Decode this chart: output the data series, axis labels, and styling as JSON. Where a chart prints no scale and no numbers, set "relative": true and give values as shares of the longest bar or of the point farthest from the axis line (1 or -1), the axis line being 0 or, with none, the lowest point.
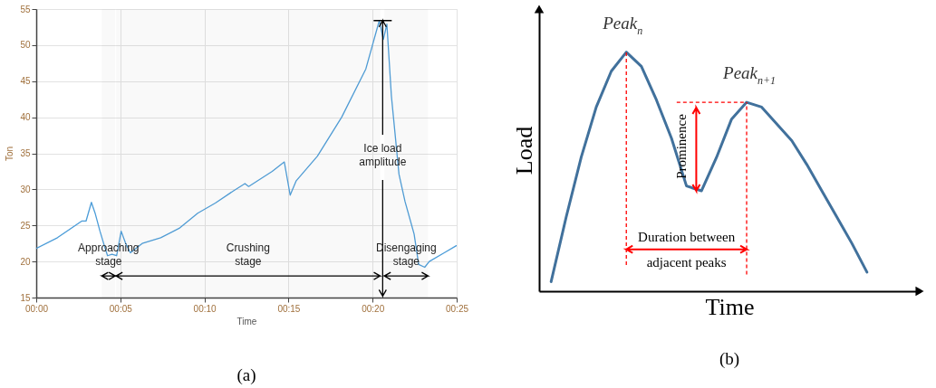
{
  "chart_data": [
    {
      "type": "line",
      "title": "(a)",
      "xlabel": "Time",
      "ylabel": "Ton",
      "x": [
        0,
        1.26,
        2.7,
        2.96,
        3.28,
        3.5,
        3.79,
        4.06,
        4.24,
        4.5,
        4.78,
        5.05,
        5.32,
        5.6,
        6.3,
        7.4,
        8.5,
        9.6,
        10.65,
        11.73,
        12.41,
        12.63,
        14.03,
        14.75,
        15.1,
        15.46,
        16.72,
        18.16,
        19.6,
        20.4,
        20.64,
        20.85,
        21.12,
        21.57,
        21.93,
        22.47,
        22.74,
        23.1,
        23.37,
        24.26,
        24.98
      ],
      "series": [
        {
          "color": "#4b9cd8",
          "values": [
            21.8,
            23.3,
            25.6,
            25.6,
            28.2,
            26.7,
            24.2,
            22.1,
            20.8,
            21.0,
            20.8,
            24.2,
            22.5,
            21.2,
            22.5,
            23.3,
            24.6,
            26.7,
            28.1,
            29.8,
            30.8,
            30.4,
            32.5,
            33.8,
            29.2,
            31.2,
            34.6,
            40.0,
            46.7,
            53.4,
            50.8,
            52.9,
            42.9,
            32.1,
            28.3,
            23.8,
            19.6,
            19.2,
            20.0,
            21.2,
            22.2
          ]
        }
      ],
      "xlim": [
        0,
        25
      ],
      "xticks": [
        {
          "value": 0,
          "label": "00:00"
        },
        {
          "value": 5,
          "label": "00:05"
        },
        {
          "value": 10,
          "label": "00:10"
        },
        {
          "value": 15,
          "label": "00:15"
        },
        {
          "value": 20,
          "label": "00:20"
        },
        {
          "value": 25,
          "label": "00:25"
        }
      ],
      "ylim": [
        15,
        55
      ],
      "yticks": [
        15,
        20,
        25,
        30,
        35,
        40,
        45,
        50,
        55
      ],
      "grid": true,
      "bands": [
        {
          "axis": "x",
          "from": 3.9,
          "to": 4.7,
          "label": "Approaching stage"
        },
        {
          "axis": "x",
          "from": 4.75,
          "to": 20.45,
          "label": "Crushing stage"
        },
        {
          "axis": "x",
          "from": 20.7,
          "to": 23.3,
          "label": "Disengaging stage"
        }
      ],
      "annotations": [
        {
          "text": "Ice load amplitude",
          "x": 20.6,
          "y": 15.2
        }
      ]
    },
    {
      "type": "line",
      "title": "(b)",
      "xlabel": "Time",
      "ylabel": "Load",
      "relative": true,
      "categories": [
        null,
        null,
        null,
        null,
        null,
        null,
        null,
        null,
        null,
        null,
        null,
        null,
        null,
        null,
        null,
        null,
        null,
        null,
        null,
        null,
        null,
        null
      ],
      "series": [
        {
          "color": "#41719c",
          "values": [
            0.04,
            0.31,
            0.56,
            0.77,
            0.92,
            1,
            0.94,
            0.8,
            0.64,
            0.44,
            0.42,
            0.56,
            0.72,
            0.79,
            0.77,
            0.7,
            0.63,
            0.53,
            0.42,
            0.31,
            0.2,
            0.08
          ]
        }
      ],
      "annotations": [
        "Peak$_{n}$",
        "Peak$_{n+1}$",
        "Prominence",
        "Duration between adjacent peaks"
      ]
    }
  ]
}
